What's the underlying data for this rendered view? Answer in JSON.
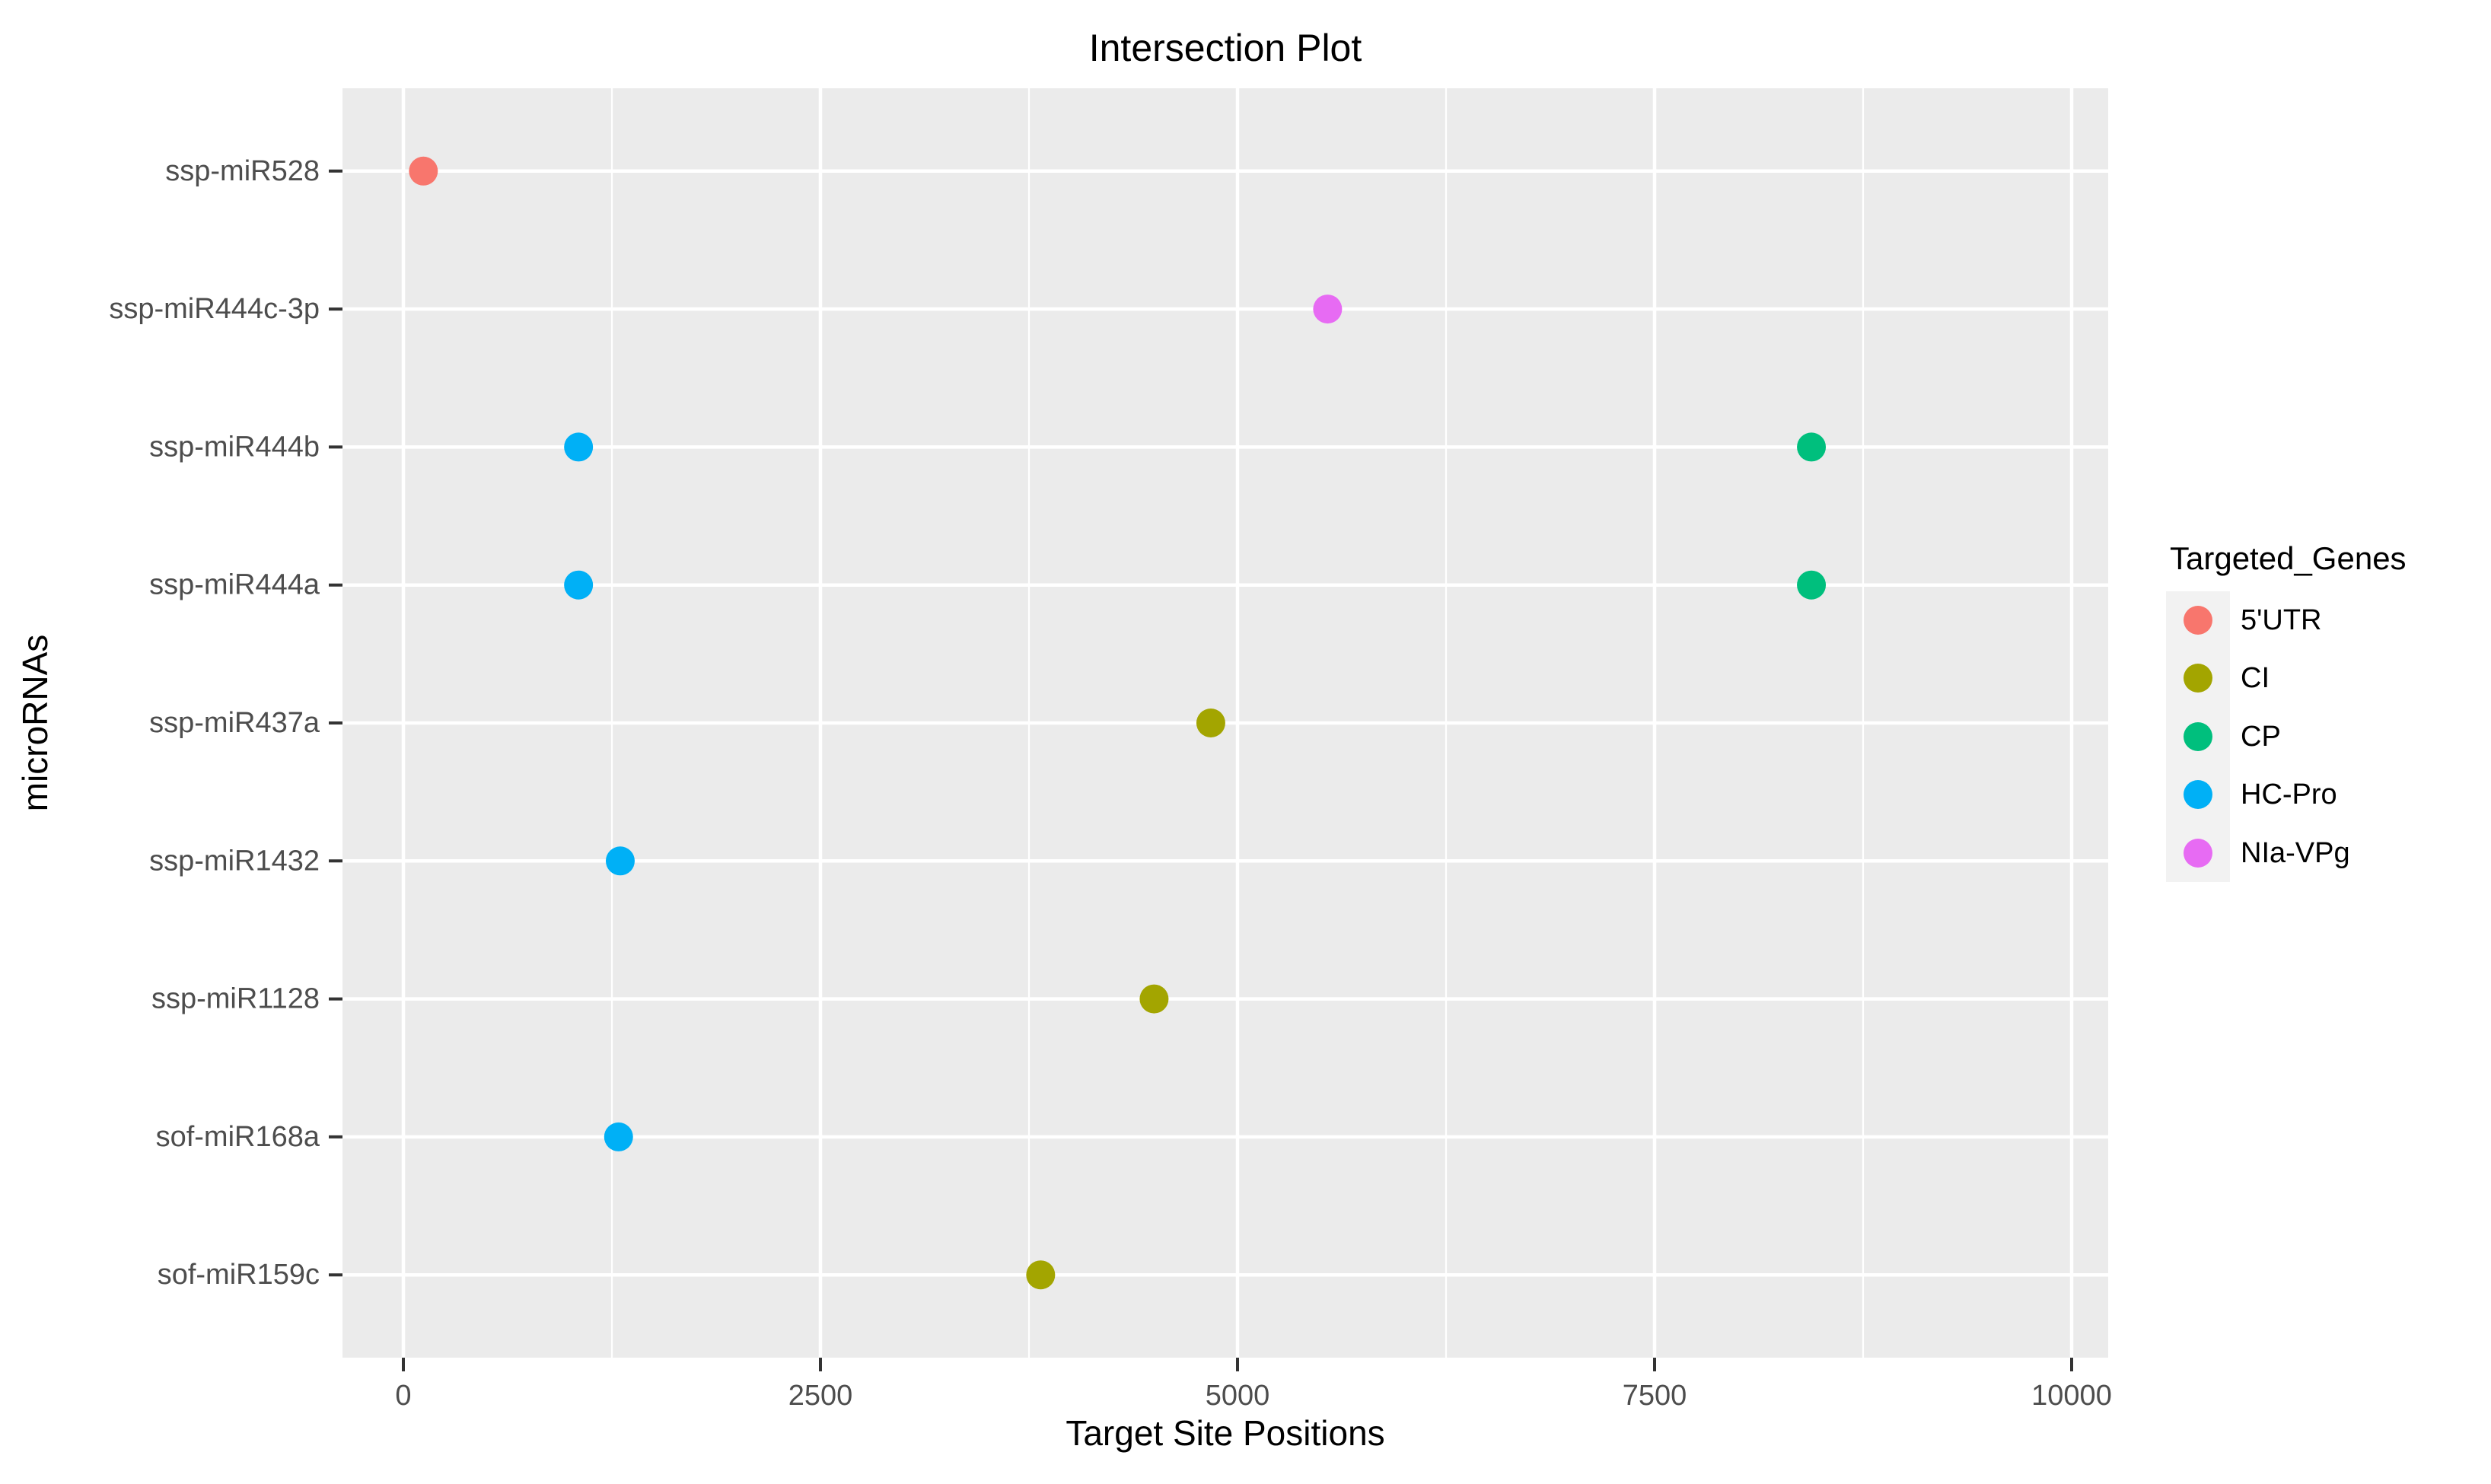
{
  "title": "Intersection Plot",
  "colors": {
    "panel_background": "#EBEBEB",
    "gridline": "#FFFFFF",
    "tick_mark": "#333333",
    "tick_label": "#4D4D4D",
    "legend_key_background": "#F2F2F2",
    "title_text": "#000000"
  },
  "chart_data": {
    "type": "scatter",
    "title": "Intersection Plot",
    "xlabel": "Target Site Positions",
    "ylabel": "microRNAs",
    "xlim": [
      -400,
      10400
    ],
    "x_major_ticks": [
      0,
      2500,
      5000,
      7500,
      10000
    ],
    "x_minor_ticks": [
      1250,
      3750,
      6250,
      8750
    ],
    "grid": "white major+minor verticals and major horizontals on grey panel",
    "legend_position": "right",
    "categories": [
      "ssp-miR528",
      "ssp-miR444c-3p",
      "ssp-miR444b",
      "ssp-miR444a",
      "ssp-miR437a",
      "ssp-miR1432",
      "ssp-miR1128",
      "sof-miR168a",
      "sof-miR159c"
    ],
    "legend": {
      "title": "Targeted_Genes",
      "entries": [
        {
          "label": "5'UTR",
          "color": "#F8766D"
        },
        {
          "label": "CI",
          "color": "#A3A500"
        },
        {
          "label": "CP",
          "color": "#00BF7D"
        },
        {
          "label": "HC-Pro",
          "color": "#00B0F6"
        },
        {
          "label": "NIa-VPg",
          "color": "#E76BF3"
        }
      ]
    },
    "points": [
      {
        "microRNA": "ssp-miR528",
        "x": 120,
        "gene": "5'UTR"
      },
      {
        "microRNA": "ssp-miR444c-3p",
        "x": 5540,
        "gene": "NIa-VPg"
      },
      {
        "microRNA": "ssp-miR444b",
        "x": 1050,
        "gene": "HC-Pro"
      },
      {
        "microRNA": "ssp-miR444b",
        "x": 8440,
        "gene": "CP"
      },
      {
        "microRNA": "ssp-miR444a",
        "x": 1050,
        "gene": "HC-Pro"
      },
      {
        "microRNA": "ssp-miR444a",
        "x": 8440,
        "gene": "CP"
      },
      {
        "microRNA": "ssp-miR437a",
        "x": 4840,
        "gene": "CI"
      },
      {
        "microRNA": "ssp-miR1432",
        "x": 1300,
        "gene": "HC-Pro"
      },
      {
        "microRNA": "ssp-miR1128",
        "x": 4500,
        "gene": "CI"
      },
      {
        "microRNA": "sof-miR168a",
        "x": 1290,
        "gene": "HC-Pro"
      },
      {
        "microRNA": "sof-miR159c",
        "x": 3820,
        "gene": "CI"
      }
    ]
  }
}
